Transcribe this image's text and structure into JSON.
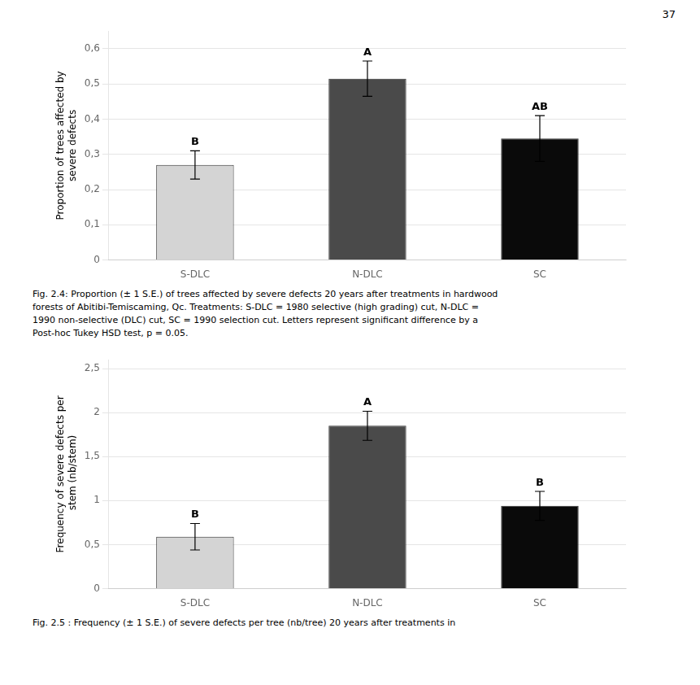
{
  "page_number": "37",
  "chart_data": [
    {
      "type": "bar",
      "categories": [
        "S-DLC",
        "N-DLC",
        "SC"
      ],
      "values": [
        0.27,
        0.515,
        0.345
      ],
      "errors": [
        0.04,
        0.05,
        0.065
      ],
      "colors": [
        "#d4d4d4",
        "#4a4a4a",
        "#0a0a0a"
      ],
      "annotations": [
        "B",
        "A",
        "AB"
      ],
      "ylabel": "Proportion of trees affected by\nsevere defects",
      "ylim": [
        0,
        0.65
      ],
      "yticks": [
        0,
        {
          "value": 0.1,
          "label": "0,1"
        },
        {
          "value": 0.2,
          "label": "0,2"
        },
        {
          "value": 0.3,
          "label": "0,3"
        },
        {
          "value": 0.4,
          "label": "0,4"
        },
        {
          "value": 0.5,
          "label": "0,5"
        },
        {
          "value": 0.6,
          "label": "0,6"
        }
      ],
      "grid": true,
      "caption": [
        "Fig. 2.4: Proportion (± 1 S.E.) of trees affected by severe defects 20 years after treatments in hardwood",
        "forests of Abitibi-Temiscaming, Qc. Treatments: S-DLC = 1980 selective (high grading) cut, N-DLC =",
        "1990 non-selective (DLC) cut, SC = 1990 selection cut. Letters represent significant difference by a",
        "Post-hoc Tukey HSD test, p = 0.05."
      ]
    },
    {
      "type": "bar",
      "categories": [
        "S-DLC",
        "N-DLC",
        "SC"
      ],
      "values": [
        0.59,
        1.85,
        0.94
      ],
      "errors": [
        0.15,
        0.165,
        0.165
      ],
      "colors": [
        "#d4d4d4",
        "#4a4a4a",
        "#0a0a0a"
      ],
      "annotations": [
        "B",
        "A",
        "B"
      ],
      "ylabel": "Frequency of severe defects per\n stem (nb/stem)",
      "ylim": [
        0,
        2.6
      ],
      "yticks": [
        0,
        {
          "value": 0.5,
          "label": "0,5"
        },
        1,
        {
          "value": 1.5,
          "label": "1,5"
        },
        2,
        {
          "value": 2.5,
          "label": "2,5"
        }
      ],
      "grid": true,
      "caption": [
        "Fig. 2.5 : Frequency (± 1 S.E.) of severe defects per tree (nb/tree) 20 years after treatments in"
      ]
    }
  ]
}
